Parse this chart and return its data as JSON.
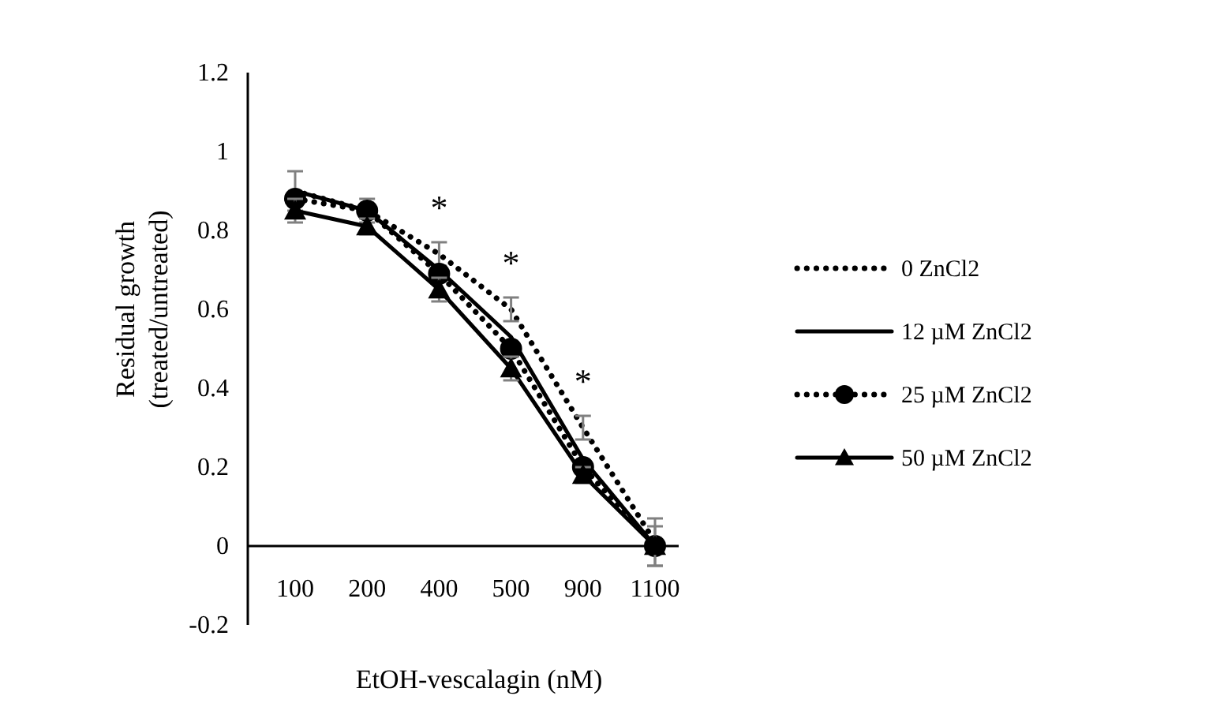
{
  "chart_data": {
    "type": "line",
    "xlabel": "EtOH-vescalagin (nM)",
    "ylabel": "Residual growth\n(treated/untreated)",
    "categories": [
      "100",
      "200",
      "400",
      "500",
      "900",
      "1100"
    ],
    "ylim": [
      -0.2,
      1.2
    ],
    "yticks": [
      -0.2,
      0,
      0.2,
      0.4,
      0.6,
      0.8,
      1,
      1.2
    ],
    "legend": "right",
    "series": [
      {
        "name": "0 ZnCl2",
        "color": "#000000",
        "line_style": "dotted",
        "marker": "none",
        "values": [
          0.9,
          0.85,
          0.74,
          0.6,
          0.3,
          0.01
        ],
        "errors": [
          0.05,
          0.03,
          0.03,
          0.03,
          0.03,
          0.06
        ]
      },
      {
        "name": "12 µM ZnCl2",
        "color": "#000000",
        "line_style": "solid",
        "marker": "none",
        "values": [
          0.9,
          0.85,
          0.7,
          0.53,
          0.22,
          0.0
        ]
      },
      {
        "name": "25 µM ZnCl2",
        "color": "#000000",
        "line_style": "dotted",
        "marker": "circle",
        "values": [
          0.88,
          0.85,
          0.69,
          0.5,
          0.2,
          0.0
        ]
      },
      {
        "name": "50 µM ZnCl2",
        "color": "#000000",
        "line_style": "solid",
        "marker": "triangle",
        "values": [
          0.85,
          0.81,
          0.65,
          0.45,
          0.18,
          0.0
        ],
        "errors": [
          0.03,
          0.02,
          0.03,
          0.03,
          0.02,
          0.05
        ]
      }
    ],
    "annotations": [
      {
        "text": "*",
        "x": "400",
        "y": 0.74
      },
      {
        "text": "*",
        "x": "500",
        "y": 0.6
      },
      {
        "text": "*",
        "x": "900",
        "y": 0.3
      }
    ]
  }
}
